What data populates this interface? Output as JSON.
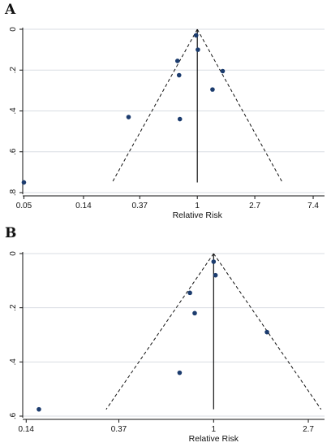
{
  "panels": [
    {
      "letter": "A"
    },
    {
      "letter": "B"
    }
  ],
  "chart_data": [
    {
      "type": "scatter",
      "title": "",
      "xlabel": "Relative Risk",
      "ylabel": "",
      "x_scale": "log",
      "x_ticks": [
        0.05,
        0.14,
        0.37,
        1,
        2.7,
        7.4
      ],
      "x_tick_labels": [
        "0.05",
        "0.14",
        "0.37",
        "1",
        "2.7",
        "7.4"
      ],
      "y_ticks": [
        0,
        0.2,
        0.4,
        0.6,
        0.8
      ],
      "y_tick_labels": [
        "0",
        ".2",
        ".4",
        ".6",
        ".8"
      ],
      "y_reversed": true,
      "xlim": [
        0.049,
        9.0
      ],
      "ylim": [
        0,
        0.8
      ],
      "grid": "horizontal",
      "pooled_estimate": 1,
      "funnel_max_se": 0.75,
      "point_color": "#1c3c6e",
      "points": [
        {
          "x": 0.98,
          "y": 0.03
        },
        {
          "x": 1.01,
          "y": 0.1
        },
        {
          "x": 0.71,
          "y": 0.155
        },
        {
          "x": 1.55,
          "y": 0.205
        },
        {
          "x": 0.73,
          "y": 0.225
        },
        {
          "x": 1.3,
          "y": 0.295
        },
        {
          "x": 0.305,
          "y": 0.43
        },
        {
          "x": 0.74,
          "y": 0.44
        },
        {
          "x": 0.05,
          "y": 0.75
        }
      ]
    },
    {
      "type": "scatter",
      "title": "",
      "xlabel": "Relative Risk",
      "ylabel": "",
      "x_scale": "log",
      "x_ticks": [
        0.14,
        0.37,
        1,
        2.7
      ],
      "x_tick_labels": [
        "0.14",
        "0.37",
        "1",
        "2.7"
      ],
      "y_ticks": [
        0,
        0.2,
        0.4,
        0.6
      ],
      "y_tick_labels": [
        "0",
        ".2",
        ".4",
        ".6"
      ],
      "y_reversed": true,
      "xlim": [
        0.135,
        3.2
      ],
      "ylim": [
        0,
        0.6
      ],
      "grid": "horizontal",
      "pooled_estimate": 1,
      "funnel_max_se": 0.575,
      "point_color": "#1c3c6e",
      "points": [
        {
          "x": 1.0,
          "y": 0.03
        },
        {
          "x": 1.02,
          "y": 0.08
        },
        {
          "x": 0.78,
          "y": 0.145
        },
        {
          "x": 0.82,
          "y": 0.22
        },
        {
          "x": 1.75,
          "y": 0.29
        },
        {
          "x": 0.7,
          "y": 0.44
        },
        {
          "x": 0.16,
          "y": 0.575
        }
      ]
    }
  ]
}
